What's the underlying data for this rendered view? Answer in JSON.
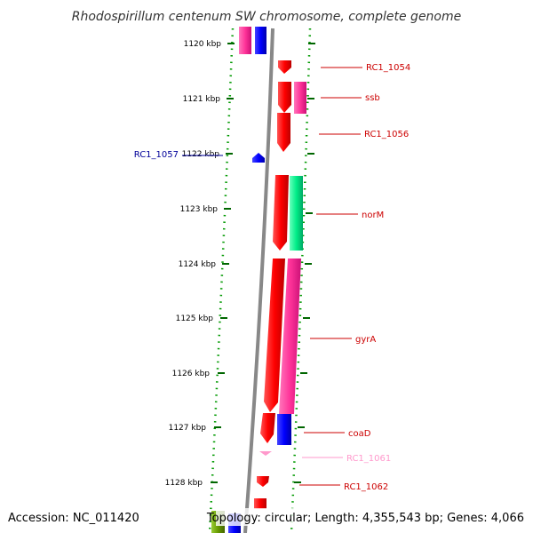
{
  "title": "Rhodospirillum centenum SW chromosome, complete genome",
  "footer": {
    "accession": "Accession: NC_011420",
    "stats": "Topology: circular; Length: 4,355,543 bp; Genes: 4,066"
  },
  "scale": {
    "ticks": [
      "1120 kbp",
      "1121 kbp",
      "1122 kbp",
      "1123 kbp",
      "1124 kbp",
      "1125 kbp",
      "1126 kbp",
      "1127 kbp",
      "1128 kbp"
    ]
  },
  "genes": [
    {
      "label": "RC1_1054",
      "color": "#cc0000"
    },
    {
      "label": "ssb",
      "color": "#cc0000"
    },
    {
      "label": "RC1_1056",
      "color": "#cc0000"
    },
    {
      "label": "RC1_1057",
      "color": "#000099"
    },
    {
      "label": "norM",
      "color": "#cc0000"
    },
    {
      "label": "gyrA",
      "color": "#cc0000"
    },
    {
      "label": "coaD",
      "color": "#cc0000"
    },
    {
      "label": "RC1_1061",
      "color": "#ff99cc"
    },
    {
      "label": "RC1_1062",
      "color": "#cc0000"
    }
  ],
  "colors": {
    "cds_forward": "#ff0000",
    "cds_pink": "#ff3399",
    "cds_blue": "#0000ff",
    "cds_teal": "#00ee88",
    "cds_olive": "#669900",
    "backbone": "#888888",
    "dotted_ring": "#009900",
    "tick": "#006600"
  }
}
